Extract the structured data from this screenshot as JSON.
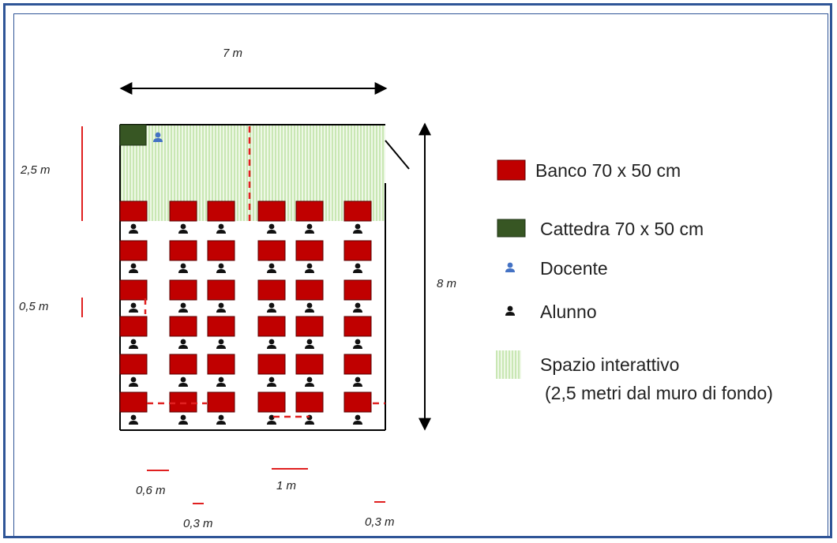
{
  "dimensions": {
    "width_label": "7 m",
    "height_label": "8 m",
    "interactive_depth_label": "2,5 m",
    "row_gap_label": "0,5 m",
    "desk_gap_label": "0,6 m",
    "aisle_label": "1 m",
    "wall_gap_left_label": "0,3 m",
    "wall_gap_right_label": "0,3 m"
  },
  "legend": {
    "banco": "Banco 70 x 50 cm",
    "cattedra": "Cattedra 70 x 50 cm",
    "docente": "Docente",
    "alunno": "Alunno",
    "spazio_line1": "Spazio interattivo",
    "spazio_line2": "(2,5 metri dal muro di fondo)"
  },
  "colors": {
    "banco": "#c00000",
    "cattedra": "#375623",
    "docente": "#4472c4",
    "alunno": "#111111",
    "spazio": "#c9e7b4",
    "frame": "#2f5597",
    "measure": "#e02020"
  },
  "layout_counts": {
    "desk_rows": 6,
    "desk_columns": 6
  }
}
